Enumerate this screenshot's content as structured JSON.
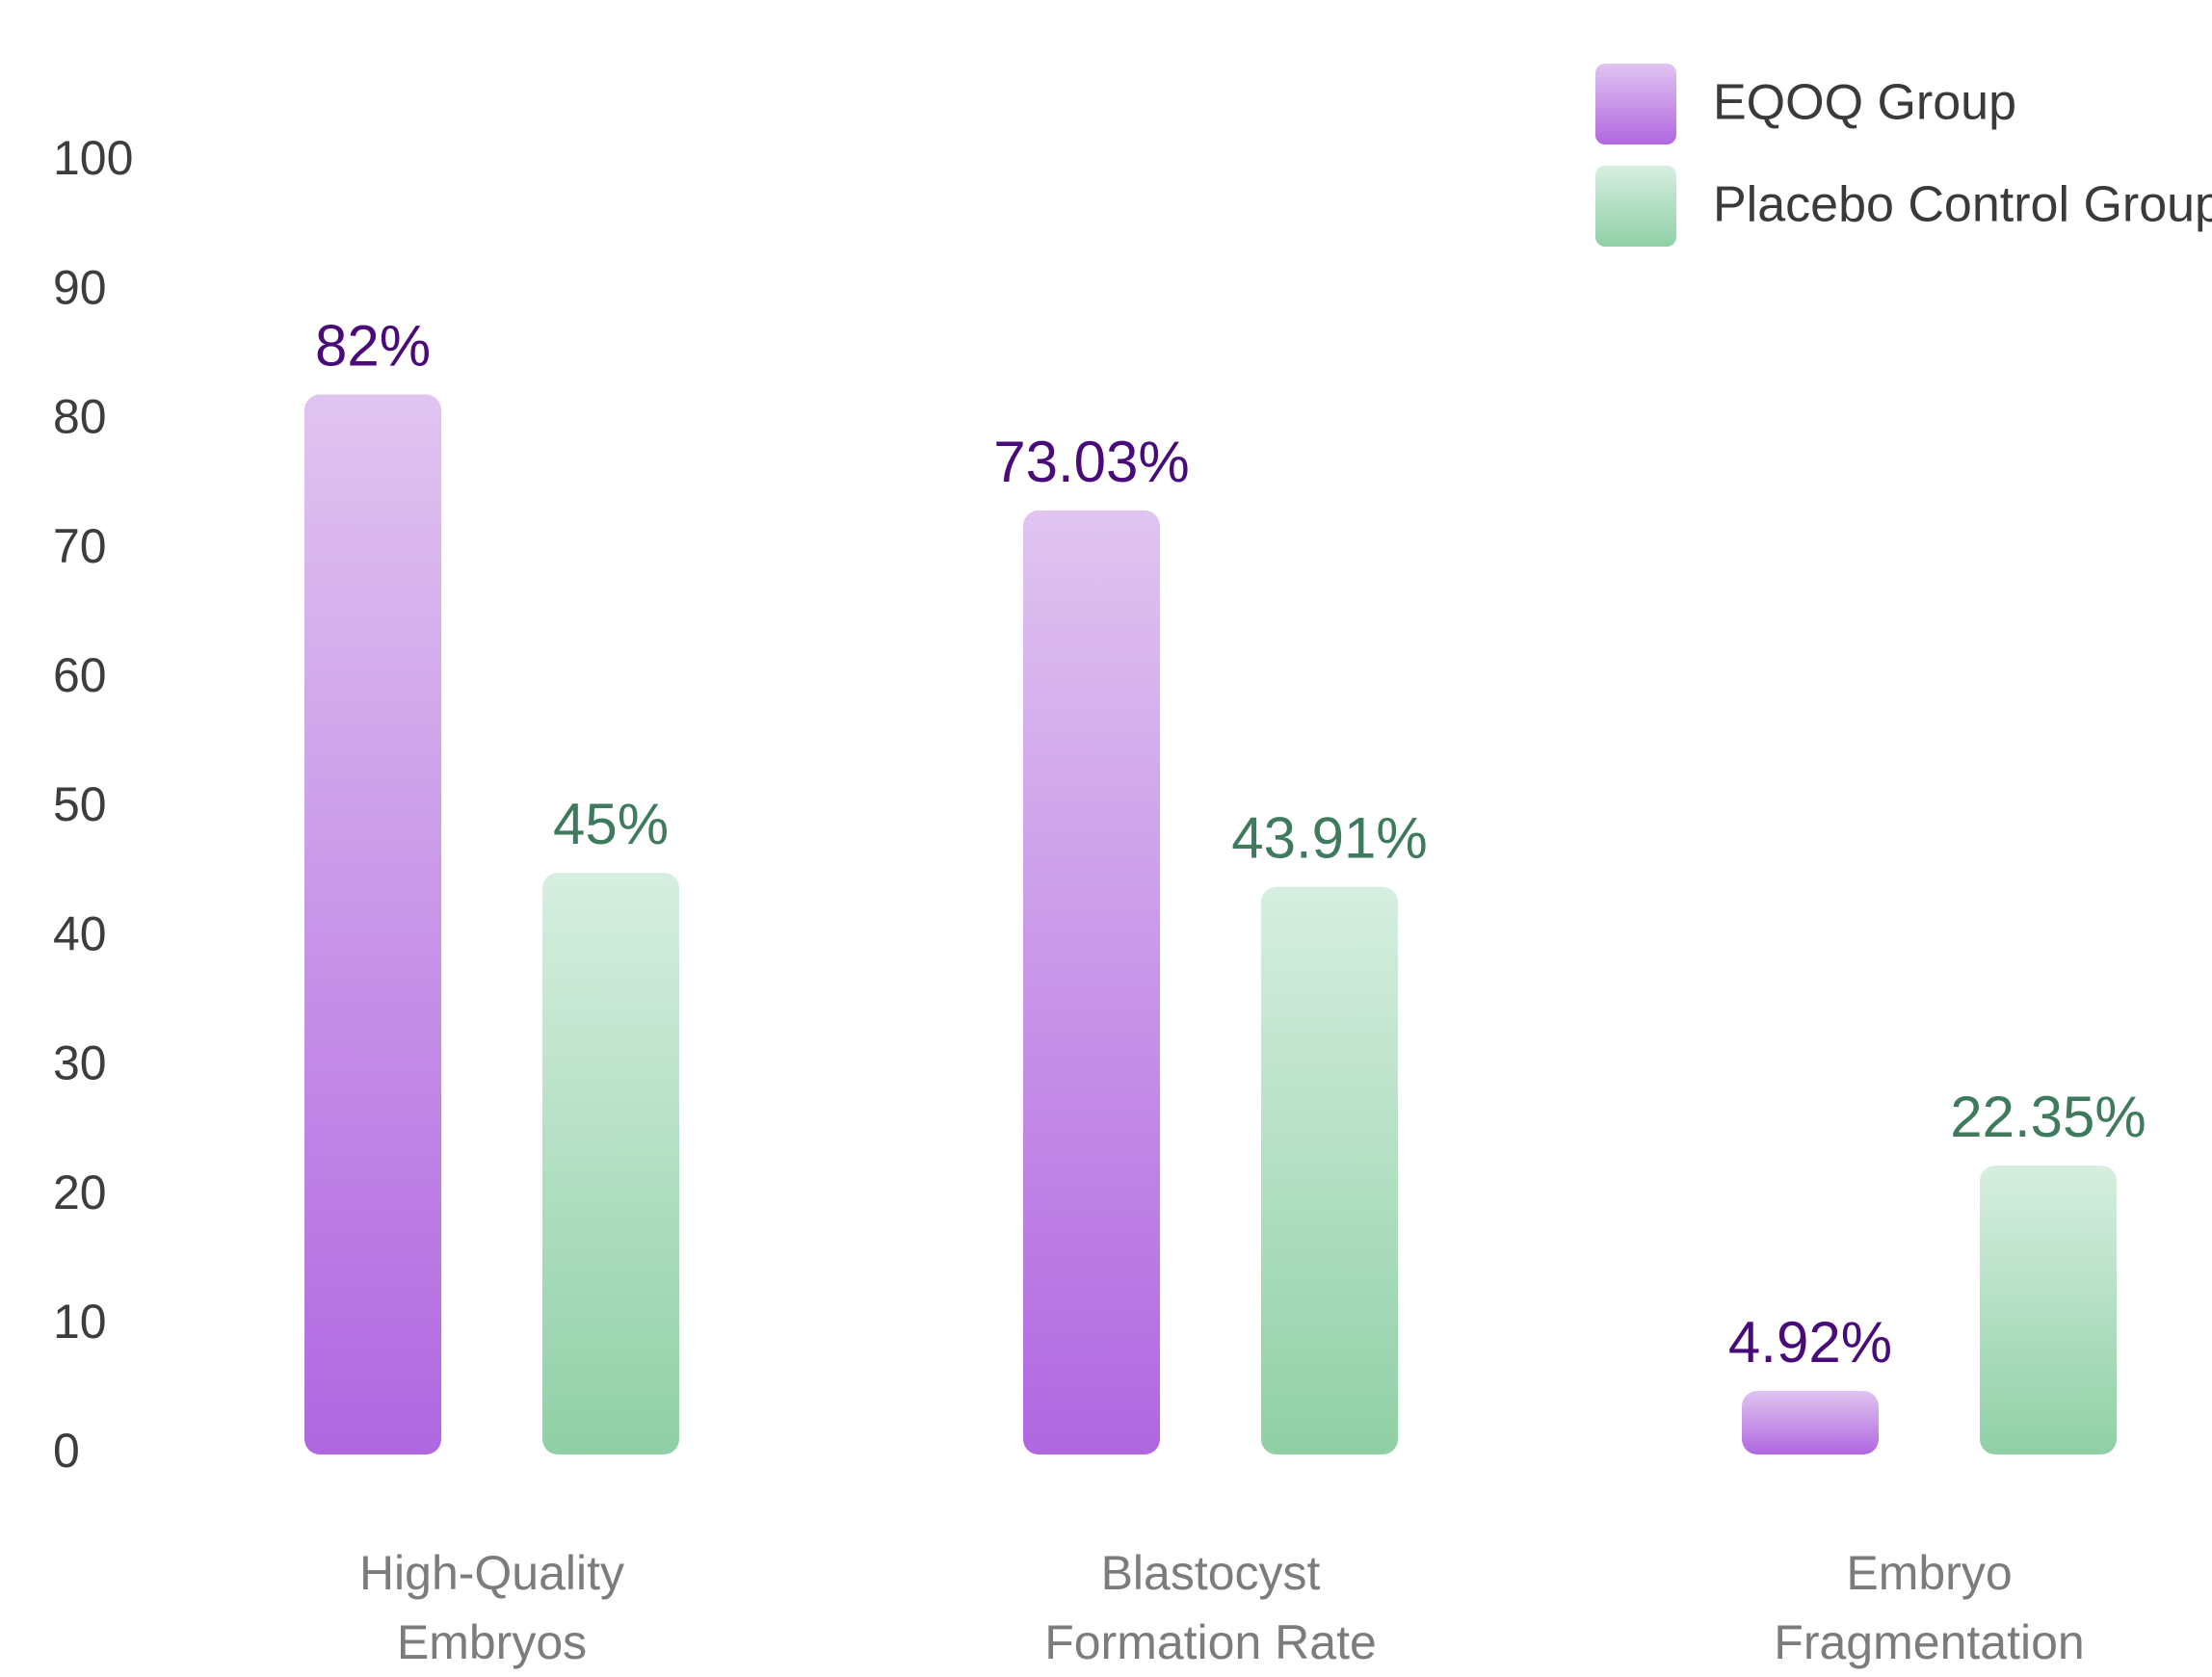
{
  "chart_data": {
    "type": "bar",
    "categories": [
      "High-Quality Embryos",
      "Blastocyst Formation Rate",
      "Embryo Fragmentation"
    ],
    "category_lines": [
      [
        "High-Quality",
        "Embryos"
      ],
      [
        "Blastocyst",
        "Formation Rate"
      ],
      [
        "Embryo",
        "Fragmentation"
      ]
    ],
    "series": [
      {
        "name": "EQOQ Group",
        "values": [
          82,
          73.03,
          4.92
        ],
        "labels": [
          "82%",
          "73.03%",
          "4.92%"
        ],
        "color_top": "#e0c4f0",
        "color_bottom": "#b067e0",
        "label_color": "#4a0b7a"
      },
      {
        "name": "Placebo Control Group",
        "values": [
          45,
          43.91,
          22.35
        ],
        "labels": [
          "45%",
          "43.91%",
          "22.35%"
        ],
        "color_top": "#d6eee0",
        "color_bottom": "#90d0a6",
        "label_color": "#3e7a5c"
      }
    ],
    "yticks": [
      0,
      10,
      20,
      30,
      40,
      50,
      60,
      70,
      80,
      90,
      100
    ],
    "ylim": [
      0,
      100
    ],
    "legend": "top-right",
    "grid": false
  }
}
